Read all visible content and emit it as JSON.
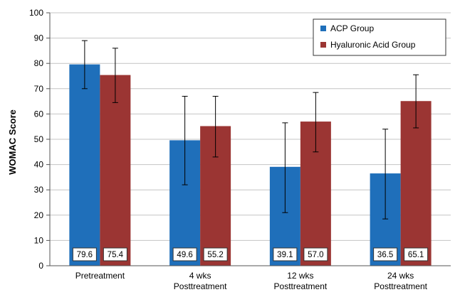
{
  "chart_data": {
    "type": "bar",
    "title": "",
    "xlabel": "",
    "ylabel": "WOMAC Score",
    "ylim": [
      0,
      100
    ],
    "yticks": [
      0,
      10,
      20,
      30,
      40,
      50,
      60,
      70,
      80,
      90,
      100
    ],
    "grid": true,
    "legend_position": "top-right",
    "categories": [
      [
        "Pretreatment"
      ],
      [
        "4 wks",
        "Posttreatment"
      ],
      [
        "12 wks",
        "Posttreatment"
      ],
      [
        "24 wks",
        "Posttreatment"
      ]
    ],
    "series": [
      {
        "name": "ACP Group",
        "color": "#1f6fba",
        "values": [
          79.6,
          49.6,
          39.1,
          36.5
        ],
        "labels": [
          "79.6",
          "49.6",
          "39.1",
          "36.5"
        ],
        "error_low": [
          70,
          32,
          21,
          18.5
        ],
        "error_high": [
          89,
          67,
          56.5,
          54
        ]
      },
      {
        "name": "Hyaluronic Acid Group",
        "color": "#9b3533",
        "values": [
          75.4,
          55.2,
          57.0,
          65.1
        ],
        "labels": [
          "75.4",
          "55.2",
          "57.0",
          "65.1"
        ],
        "error_low": [
          64.5,
          43,
          45,
          54.5
        ],
        "error_high": [
          86,
          67,
          68.5,
          75.5
        ]
      }
    ]
  }
}
